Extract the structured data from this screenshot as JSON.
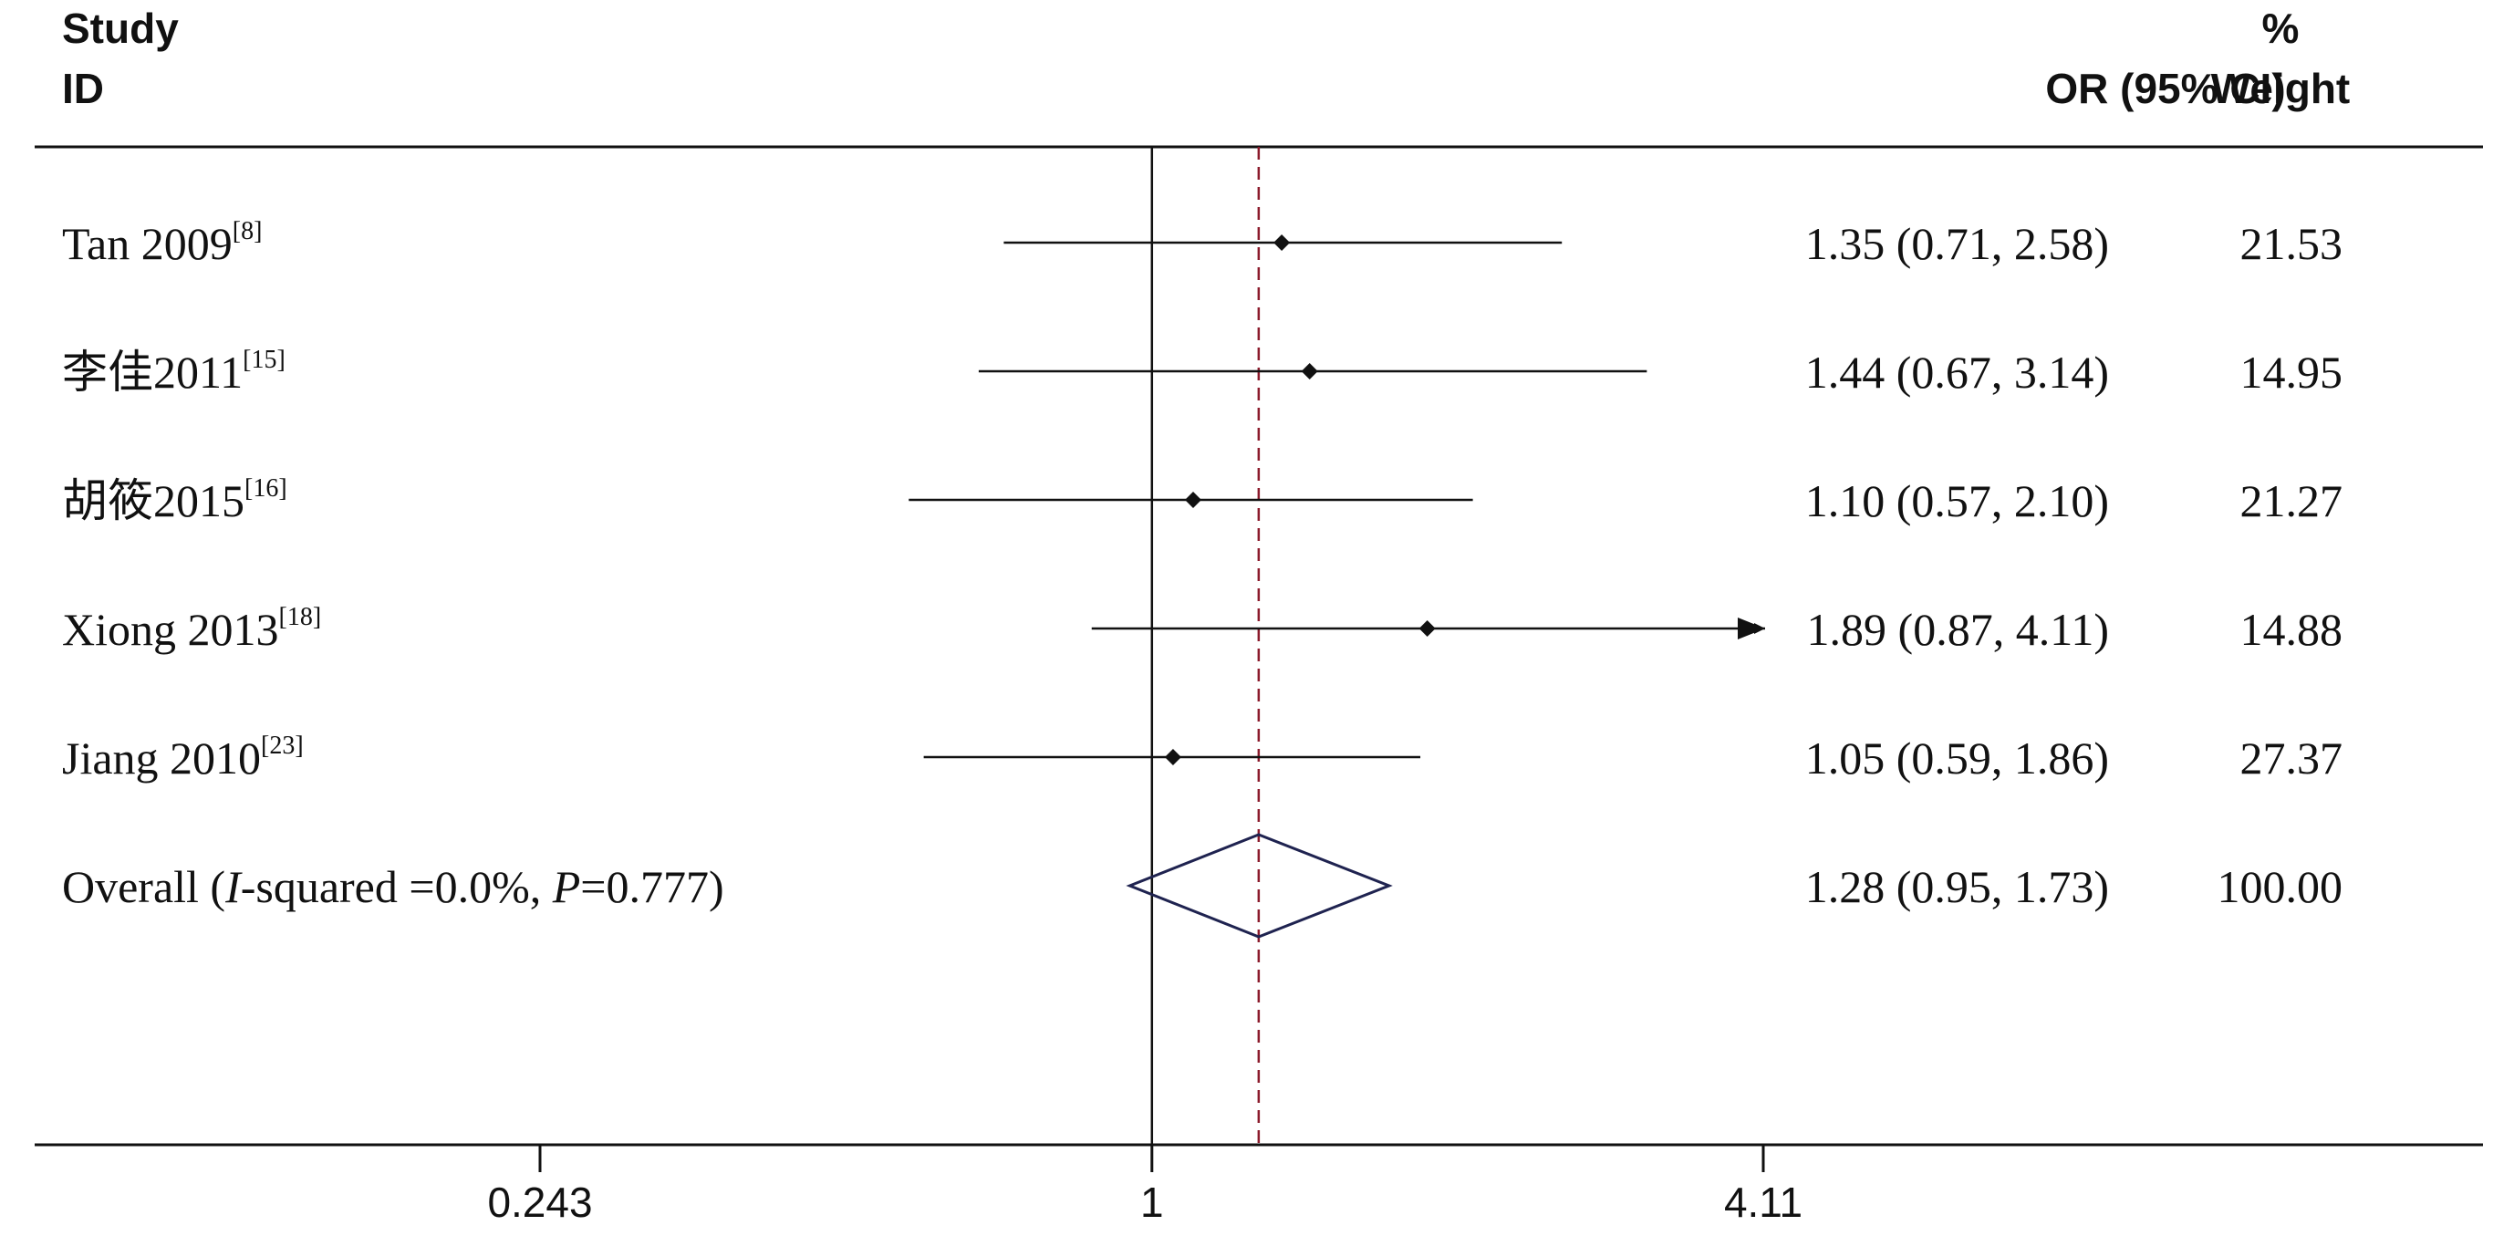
{
  "headers": {
    "study_line1": "Study",
    "study_line2": "ID",
    "or_label": "OR (95% CI)",
    "weight_line1": "%",
    "weight_line2": "Weight"
  },
  "chart_data": {
    "type": "forest",
    "scale": "log",
    "xlim": [
      0.243,
      4.11
    ],
    "ticks": [
      {
        "value": 0.243,
        "label": "0.243"
      },
      {
        "value": 1,
        "label": "1"
      },
      {
        "value": 4.11,
        "label": "4.11"
      }
    ],
    "reference_line": 1,
    "overall_line": 1.28,
    "studies": [
      {
        "name": "Tan 2009",
        "ref": "[8]",
        "or": 1.35,
        "lower": 0.71,
        "upper": 2.58,
        "or_text": "1.35 (0.71, 2.58)",
        "weight": "21.53"
      },
      {
        "name": "李佳2011",
        "ref": "[15]",
        "or": 1.44,
        "lower": 0.67,
        "upper": 3.14,
        "or_text": "1.44 (0.67, 3.14)",
        "weight": "14.95"
      },
      {
        "name": "胡筱2015",
        "ref": "[16]",
        "or": 1.1,
        "lower": 0.57,
        "upper": 2.1,
        "or_text": "1.10 (0.57, 2.10)",
        "weight": "21.27"
      },
      {
        "name": "Xiong 2013",
        "ref": "[18]",
        "or": 1.89,
        "lower": 0.87,
        "upper": 4.11,
        "or_text": "1.89 (0.87, 4.11)",
        "weight": "14.88",
        "arrow": true
      },
      {
        "name": "Jiang 2010",
        "ref": "[23]",
        "or": 1.05,
        "lower": 0.59,
        "upper": 1.86,
        "or_text": "1.05 (0.59, 1.86)",
        "weight": "27.37"
      }
    ],
    "overall": {
      "prefix": "Overall  (",
      "i_label": "I",
      "i_text": "-squared =0.0%, ",
      "p_label": "P",
      "p_text": "=0.777)",
      "or": 1.28,
      "lower": 0.95,
      "upper": 1.73,
      "or_text": "1.28 (0.95, 1.73)",
      "weight": "100.00"
    }
  }
}
